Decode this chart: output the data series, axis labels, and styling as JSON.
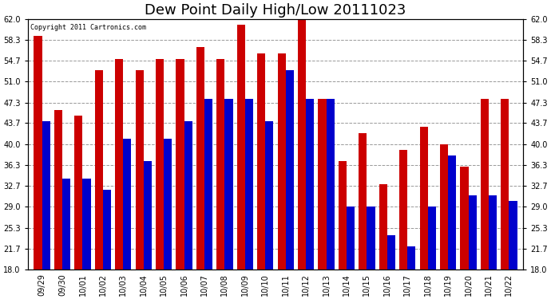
{
  "title": "Dew Point Daily High/Low 20111023",
  "copyright": "Copyright 2011 Cartronics.com",
  "dates": [
    "09/29",
    "09/30",
    "10/01",
    "10/02",
    "10/03",
    "10/04",
    "10/05",
    "10/06",
    "10/07",
    "10/08",
    "10/09",
    "10/10",
    "10/11",
    "10/12",
    "10/13",
    "10/14",
    "10/15",
    "10/16",
    "10/17",
    "10/18",
    "10/19",
    "10/20",
    "10/21",
    "10/22"
  ],
  "highs": [
    59,
    46,
    45,
    53,
    55,
    53,
    55,
    55,
    57,
    55,
    61,
    56,
    56,
    63,
    48,
    37,
    42,
    33,
    39,
    43,
    40,
    36,
    48,
    48
  ],
  "lows": [
    44,
    34,
    34,
    32,
    41,
    37,
    41,
    44,
    48,
    48,
    48,
    44,
    53,
    48,
    48,
    29,
    29,
    24,
    22,
    29,
    38,
    31,
    31,
    30
  ],
  "high_color": "#cc0000",
  "low_color": "#0000cc",
  "background_color": "#ffffff",
  "plot_bg_color": "#ffffff",
  "grid_color": "#999999",
  "ylim": [
    18.0,
    62.0
  ],
  "ymin": 18.0,
  "yticks": [
    18.0,
    21.7,
    25.3,
    29.0,
    32.7,
    36.3,
    40.0,
    43.7,
    47.3,
    51.0,
    54.7,
    58.3,
    62.0
  ],
  "title_fontsize": 13,
  "bar_width": 0.4,
  "figwidth": 6.9,
  "figheight": 3.75,
  "dpi": 100
}
